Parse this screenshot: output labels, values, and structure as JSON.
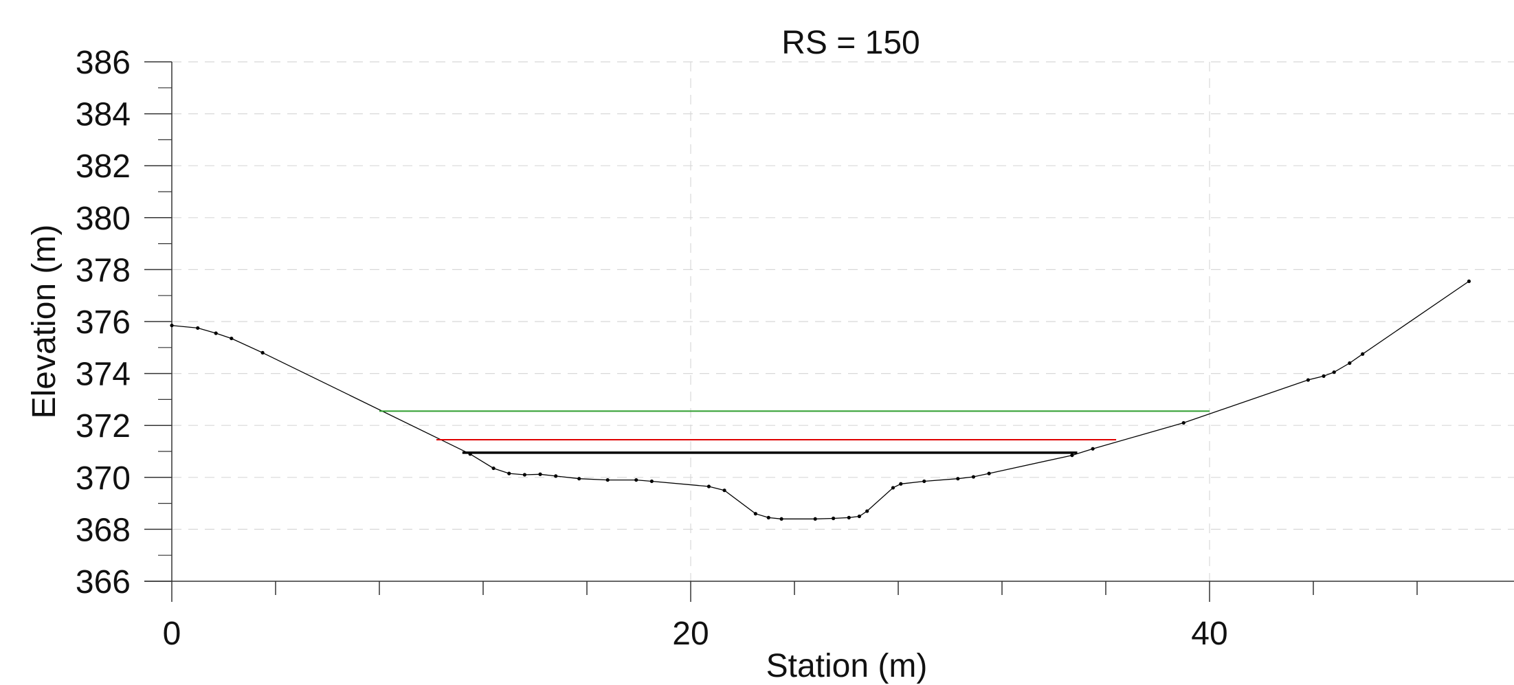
{
  "chart_data": {
    "type": "line",
    "title": "RS = 150",
    "xlabel": "Station (m)",
    "ylabel": "Elevation (m)",
    "xlim": [
      0,
      51.8
    ],
    "ylim": [
      366,
      386
    ],
    "x_major_ticks": [
      0,
      20,
      40
    ],
    "x_minor_step": 4,
    "y_major_ticks": [
      366,
      368,
      370,
      372,
      374,
      376,
      378,
      380,
      382,
      384,
      386
    ],
    "grid": true,
    "legend": "none",
    "series": [
      {
        "color": "#000000",
        "points": [
          [
            0,
            375.85
          ],
          [
            1.0,
            375.75
          ],
          [
            1.7,
            375.55
          ],
          [
            2.3,
            375.35
          ],
          [
            3.5,
            374.8
          ],
          [
            11.5,
            370.9
          ],
          [
            12.4,
            370.35
          ],
          [
            13.0,
            370.15
          ],
          [
            13.6,
            370.1
          ],
          [
            14.2,
            370.12
          ],
          [
            14.8,
            370.05
          ],
          [
            15.7,
            369.95
          ],
          [
            16.8,
            369.9
          ],
          [
            17.9,
            369.9
          ],
          [
            18.5,
            369.85
          ],
          [
            20.7,
            369.65
          ],
          [
            21.3,
            369.5
          ],
          [
            22.5,
            368.6
          ],
          [
            23.0,
            368.45
          ],
          [
            23.5,
            368.4
          ],
          [
            24.8,
            368.4
          ],
          [
            25.5,
            368.42
          ],
          [
            26.1,
            368.45
          ],
          [
            26.5,
            368.5
          ],
          [
            26.8,
            368.7
          ],
          [
            27.8,
            369.6
          ],
          [
            28.1,
            369.75
          ],
          [
            29.0,
            369.85
          ],
          [
            30.3,
            369.95
          ],
          [
            30.9,
            370.02
          ],
          [
            31.5,
            370.15
          ],
          [
            34.7,
            370.85
          ],
          [
            35.5,
            371.1
          ],
          [
            39.0,
            372.1
          ],
          [
            43.8,
            373.75
          ],
          [
            44.4,
            373.9
          ],
          [
            44.8,
            374.05
          ],
          [
            45.4,
            374.4
          ],
          [
            45.9,
            374.75
          ],
          [
            50.0,
            377.55
          ]
        ]
      },
      {
        "color": "#2e9e2e",
        "points": [
          [
            8.0,
            372.55
          ],
          [
            40.0,
            372.55
          ]
        ]
      },
      {
        "color": "#e00000",
        "points": [
          [
            10.2,
            371.45
          ],
          [
            36.4,
            371.45
          ]
        ]
      },
      {
        "color": "#000000",
        "points": [
          [
            11.2,
            370.95
          ],
          [
            34.9,
            370.95
          ]
        ]
      }
    ]
  }
}
